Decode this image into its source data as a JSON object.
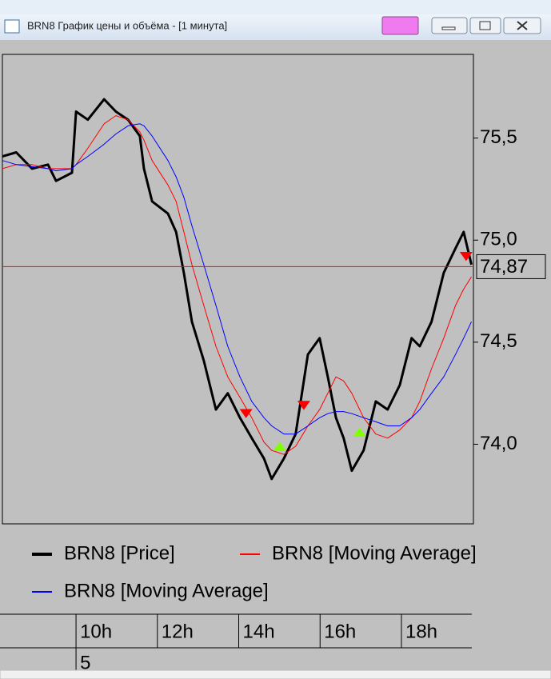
{
  "window": {
    "title": "BRN8 График цены и объёма - [1 минута]"
  },
  "chart_data": {
    "type": "line",
    "x": [
      8.19,
      8.53,
      8.92,
      9.31,
      9.51,
      9.9,
      10.0,
      10.29,
      10.69,
      10.98,
      11.28,
      11.57,
      11.67,
      11.87,
      12.26,
      12.46,
      12.65,
      12.85,
      13.14,
      13.44,
      13.73,
      14.03,
      14.32,
      14.62,
      14.81,
      15.11,
      15.4,
      15.7,
      15.99,
      16.19,
      16.39,
      16.58,
      16.78,
      17.07,
      17.37,
      17.66,
      17.96,
      18.25,
      18.45,
      18.74,
      19.04,
      19.33,
      19.53,
      19.72
    ],
    "series": [
      {
        "name": "BRN8 [Price]",
        "color": "#000000",
        "width": 3,
        "values": [
          75.41,
          75.43,
          75.35,
          75.37,
          75.29,
          75.33,
          75.63,
          75.59,
          75.69,
          75.63,
          75.59,
          75.51,
          75.35,
          75.19,
          75.13,
          75.04,
          74.84,
          74.6,
          74.41,
          74.17,
          74.25,
          74.13,
          74.03,
          73.93,
          73.83,
          73.93,
          74.05,
          74.44,
          74.52,
          74.33,
          74.13,
          74.03,
          73.87,
          73.97,
          74.21,
          74.17,
          74.29,
          74.52,
          74.48,
          74.6,
          74.84,
          74.96,
          75.04,
          74.88
        ]
      },
      {
        "name": "BRN8 [Moving Average]",
        "color": "#ff0000",
        "width": 1,
        "values": [
          75.35,
          75.37,
          75.37,
          75.35,
          75.35,
          75.35,
          75.37,
          75.45,
          75.57,
          75.61,
          75.59,
          75.53,
          75.49,
          75.39,
          75.27,
          75.19,
          75.04,
          74.88,
          74.68,
          74.48,
          74.33,
          74.23,
          74.13,
          74.01,
          73.97,
          73.95,
          73.99,
          74.09,
          74.17,
          74.25,
          74.33,
          74.31,
          74.25,
          74.13,
          74.05,
          74.03,
          74.07,
          74.13,
          74.21,
          74.37,
          74.52,
          74.68,
          74.76,
          74.82
        ]
      },
      {
        "name": "BRN8 [Moving Average]",
        "color": "#0000ff",
        "width": 1,
        "values": [
          75.39,
          75.37,
          75.36,
          75.35,
          75.34,
          75.35,
          75.37,
          75.41,
          75.47,
          75.52,
          75.56,
          75.57,
          75.56,
          75.51,
          75.39,
          75.31,
          75.21,
          75.07,
          74.88,
          74.68,
          74.48,
          74.33,
          74.21,
          74.13,
          74.09,
          74.05,
          74.05,
          74.09,
          74.13,
          74.15,
          74.16,
          74.16,
          74.15,
          74.13,
          74.11,
          74.09,
          74.09,
          74.13,
          74.17,
          74.25,
          74.33,
          74.44,
          74.52,
          74.6
        ]
      }
    ],
    "markers": [
      {
        "x": 14.18,
        "y": 74.15,
        "direction": "down",
        "color": "#ff0000"
      },
      {
        "x": 15.01,
        "y": 73.99,
        "direction": "up",
        "color": "#80ff00"
      },
      {
        "x": 15.6,
        "y": 74.19,
        "direction": "down",
        "color": "#ff0000"
      },
      {
        "x": 16.97,
        "y": 74.06,
        "direction": "up",
        "color": "#80ff00"
      },
      {
        "x": 19.59,
        "y": 74.92,
        "direction": "down",
        "color": "#ff0000"
      }
    ],
    "last_value": {
      "value": 74.87,
      "label": "74,87",
      "color": "#ff0000"
    },
    "xlim": [
      8.19,
      19.77
    ],
    "ylim": [
      73.61,
      75.91
    ],
    "xticks": [
      {
        "value": 10,
        "label": "10h"
      },
      {
        "value": 12,
        "label": "12h"
      },
      {
        "value": 14,
        "label": "14h"
      },
      {
        "value": 16,
        "label": "16h"
      },
      {
        "value": 18,
        "label": "18h"
      }
    ],
    "yticks": [
      {
        "value": 74,
        "label": "74,0"
      },
      {
        "value": 74.5,
        "label": "74,5"
      },
      {
        "value": 75,
        "label": "75,0"
      },
      {
        "value": 75.5,
        "label": "75,5"
      }
    ],
    "x_sublabel": "5"
  }
}
